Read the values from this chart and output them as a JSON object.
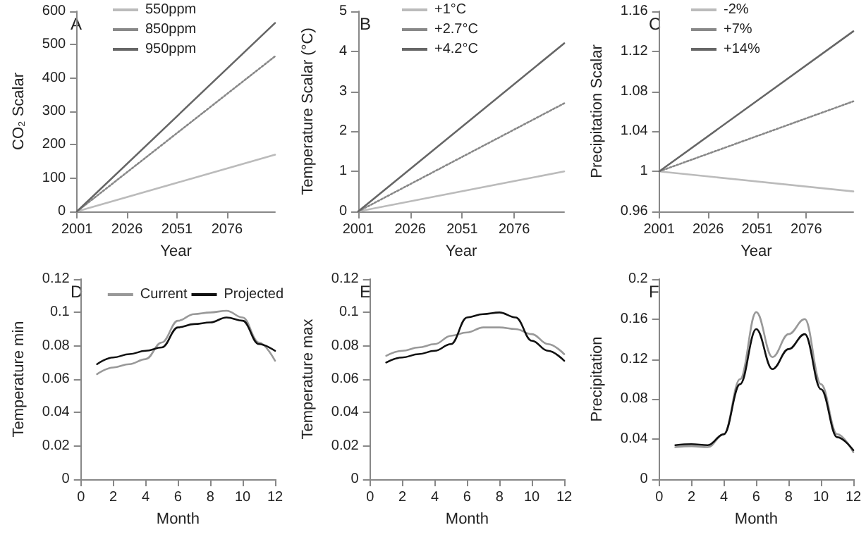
{
  "chart_data": [
    {
      "type": "line",
      "xlabel": "Year",
      "ylabel": "CO₂ Scalar",
      "annotations": [
        "A"
      ],
      "x": [
        2001,
        2100
      ],
      "xlim": [
        2001,
        2100
      ],
      "xticks": [
        2001,
        2026,
        2051,
        2076
      ],
      "ylim": [
        0,
        600
      ],
      "yticks": [
        0,
        100,
        200,
        300,
        400,
        500,
        600
      ],
      "legend": "top",
      "series": [
        {
          "name": "550ppm",
          "color": "#bbbbbb",
          "values": [
            0,
            170
          ]
        },
        {
          "name": "850ppm",
          "color": "#888888",
          "line_style": "dotted",
          "values": [
            0,
            465
          ]
        },
        {
          "name": "950ppm",
          "color": "#666666",
          "values": [
            0,
            565
          ]
        }
      ]
    },
    {
      "type": "line",
      "xlabel": "Year",
      "ylabel": "Temperature Scalar (°C)",
      "annotations": [
        "B"
      ],
      "x": [
        2001,
        2100
      ],
      "xlim": [
        2001,
        2100
      ],
      "xticks": [
        2001,
        2026,
        2051,
        2076
      ],
      "ylim": [
        0,
        5
      ],
      "yticks": [
        0,
        1,
        2,
        3,
        4,
        5
      ],
      "legend": "top",
      "series": [
        {
          "name": "+1°C",
          "color": "#bbbbbb",
          "values": [
            0,
            1.0
          ]
        },
        {
          "name": "+2.7°C",
          "color": "#888888",
          "line_style": "dotted",
          "values": [
            0,
            2.7
          ]
        },
        {
          "name": "+4.2°C",
          "color": "#666666",
          "values": [
            0,
            4.2
          ]
        }
      ]
    },
    {
      "type": "line",
      "xlabel": "Year",
      "ylabel": "Precipitation Scalar",
      "annotations": [
        "C"
      ],
      "x": [
        2001,
        2100
      ],
      "xlim": [
        2001,
        2100
      ],
      "xticks": [
        2001,
        2026,
        2051,
        2076
      ],
      "ylim": [
        0.96,
        1.16
      ],
      "yticks": [
        0.96,
        1,
        1.04,
        1.08,
        1.12,
        1.16
      ],
      "legend": "top",
      "series": [
        {
          "name": "-2%",
          "color": "#bbbbbb",
          "values": [
            1,
            0.98
          ]
        },
        {
          "name": "+7%",
          "color": "#888888",
          "line_style": "dotted",
          "values": [
            1,
            1.07
          ]
        },
        {
          "name": "+14%",
          "color": "#666666",
          "values": [
            1,
            1.14
          ]
        }
      ]
    },
    {
      "type": "line",
      "xlabel": "Month",
      "ylabel": "Temperature min",
      "annotations": [
        "D"
      ],
      "x": [
        1,
        2,
        3,
        4,
        5,
        6,
        7,
        8,
        9,
        10,
        11,
        12
      ],
      "xlim": [
        0,
        12
      ],
      "xticks": [
        0,
        2,
        4,
        6,
        8,
        10,
        12
      ],
      "ylim": [
        0,
        0.12
      ],
      "yticks": [
        0,
        0.02,
        0.04,
        0.06,
        0.08,
        0.1,
        0.12
      ],
      "legend": "top right",
      "series": [
        {
          "name": "Current",
          "color": "#999999",
          "values": [
            0.063,
            0.067,
            0.069,
            0.072,
            0.082,
            0.095,
            0.099,
            0.1,
            0.101,
            0.097,
            0.082,
            0.071
          ]
        },
        {
          "name": "Projected",
          "color": "#111111",
          "values": [
            0.069,
            0.073,
            0.075,
            0.077,
            0.079,
            0.091,
            0.093,
            0.094,
            0.097,
            0.095,
            0.081,
            0.077
          ]
        }
      ]
    },
    {
      "type": "line",
      "xlabel": "Month",
      "ylabel": "Temperature max",
      "annotations": [
        "E"
      ],
      "x": [
        1,
        2,
        3,
        4,
        5,
        6,
        7,
        8,
        9,
        10,
        11,
        12
      ],
      "xlim": [
        0,
        12
      ],
      "xticks": [
        0,
        2,
        4,
        6,
        8,
        10,
        12
      ],
      "ylim": [
        0,
        0.12
      ],
      "yticks": [
        0,
        0.02,
        0.04,
        0.06,
        0.08,
        0.1,
        0.12
      ],
      "series": [
        {
          "color": "#999999",
          "values": [
            0.074,
            0.077,
            0.079,
            0.081,
            0.086,
            0.088,
            0.091,
            0.091,
            0.09,
            0.087,
            0.081,
            0.075
          ]
        },
        {
          "color": "#111111",
          "values": [
            0.07,
            0.073,
            0.075,
            0.077,
            0.081,
            0.097,
            0.099,
            0.1,
            0.097,
            0.083,
            0.077,
            0.071
          ]
        }
      ]
    },
    {
      "type": "line",
      "xlabel": "Month",
      "ylabel": "Precipitation",
      "annotations": [
        "F"
      ],
      "x": [
        1,
        2,
        3,
        4,
        5,
        6,
        7,
        8,
        9,
        10,
        11,
        12
      ],
      "xlim": [
        0,
        12
      ],
      "xticks": [
        0,
        2,
        4,
        6,
        8,
        10,
        12
      ],
      "ylim": [
        0,
        0.2
      ],
      "yticks": [
        0,
        0.04,
        0.08,
        0.12,
        0.16,
        0.2
      ],
      "series": [
        {
          "color": "#999999",
          "values": [
            0.032,
            0.033,
            0.032,
            0.045,
            0.1,
            0.167,
            0.122,
            0.145,
            0.16,
            0.095,
            0.045,
            0.027
          ]
        },
        {
          "color": "#111111",
          "values": [
            0.034,
            0.035,
            0.034,
            0.045,
            0.095,
            0.15,
            0.11,
            0.13,
            0.145,
            0.09,
            0.042,
            0.029
          ]
        }
      ]
    }
  ]
}
